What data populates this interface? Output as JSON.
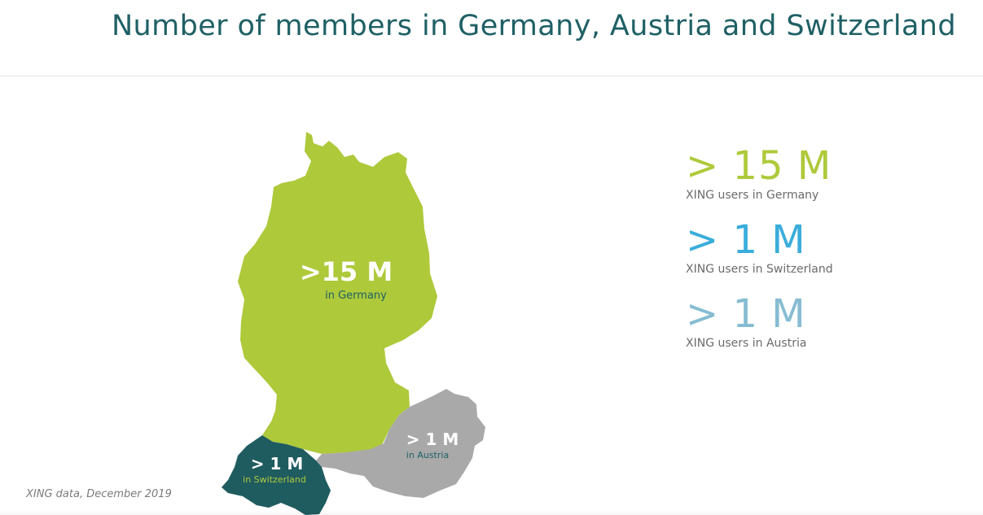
{
  "header": {
    "title": "Number of members in Germany, Austria and Switzerland"
  },
  "colors": {
    "germany": "#aec93a",
    "switzerland": "#1f5c60",
    "austria": "#a9a9a9",
    "stat_germany": "#aec93a",
    "stat_switzerland": "#3aaddb",
    "stat_austria": "#86bcd2"
  },
  "map": {
    "germany": {
      "value": ">15 M",
      "sub": "in Germany"
    },
    "switzerland": {
      "value": "> 1 M",
      "sub": "in Switzerland"
    },
    "austria": {
      "value": "> 1 M",
      "sub": "in Austria"
    }
  },
  "stats": [
    {
      "value": "> 15 M",
      "caption": "XING users in Germany"
    },
    {
      "value": "> 1 M",
      "caption": "XING users in Switzerland"
    },
    {
      "value": "> 1 M",
      "caption": "XING users in Austria"
    }
  ],
  "footnote": "XING data, December 2019"
}
